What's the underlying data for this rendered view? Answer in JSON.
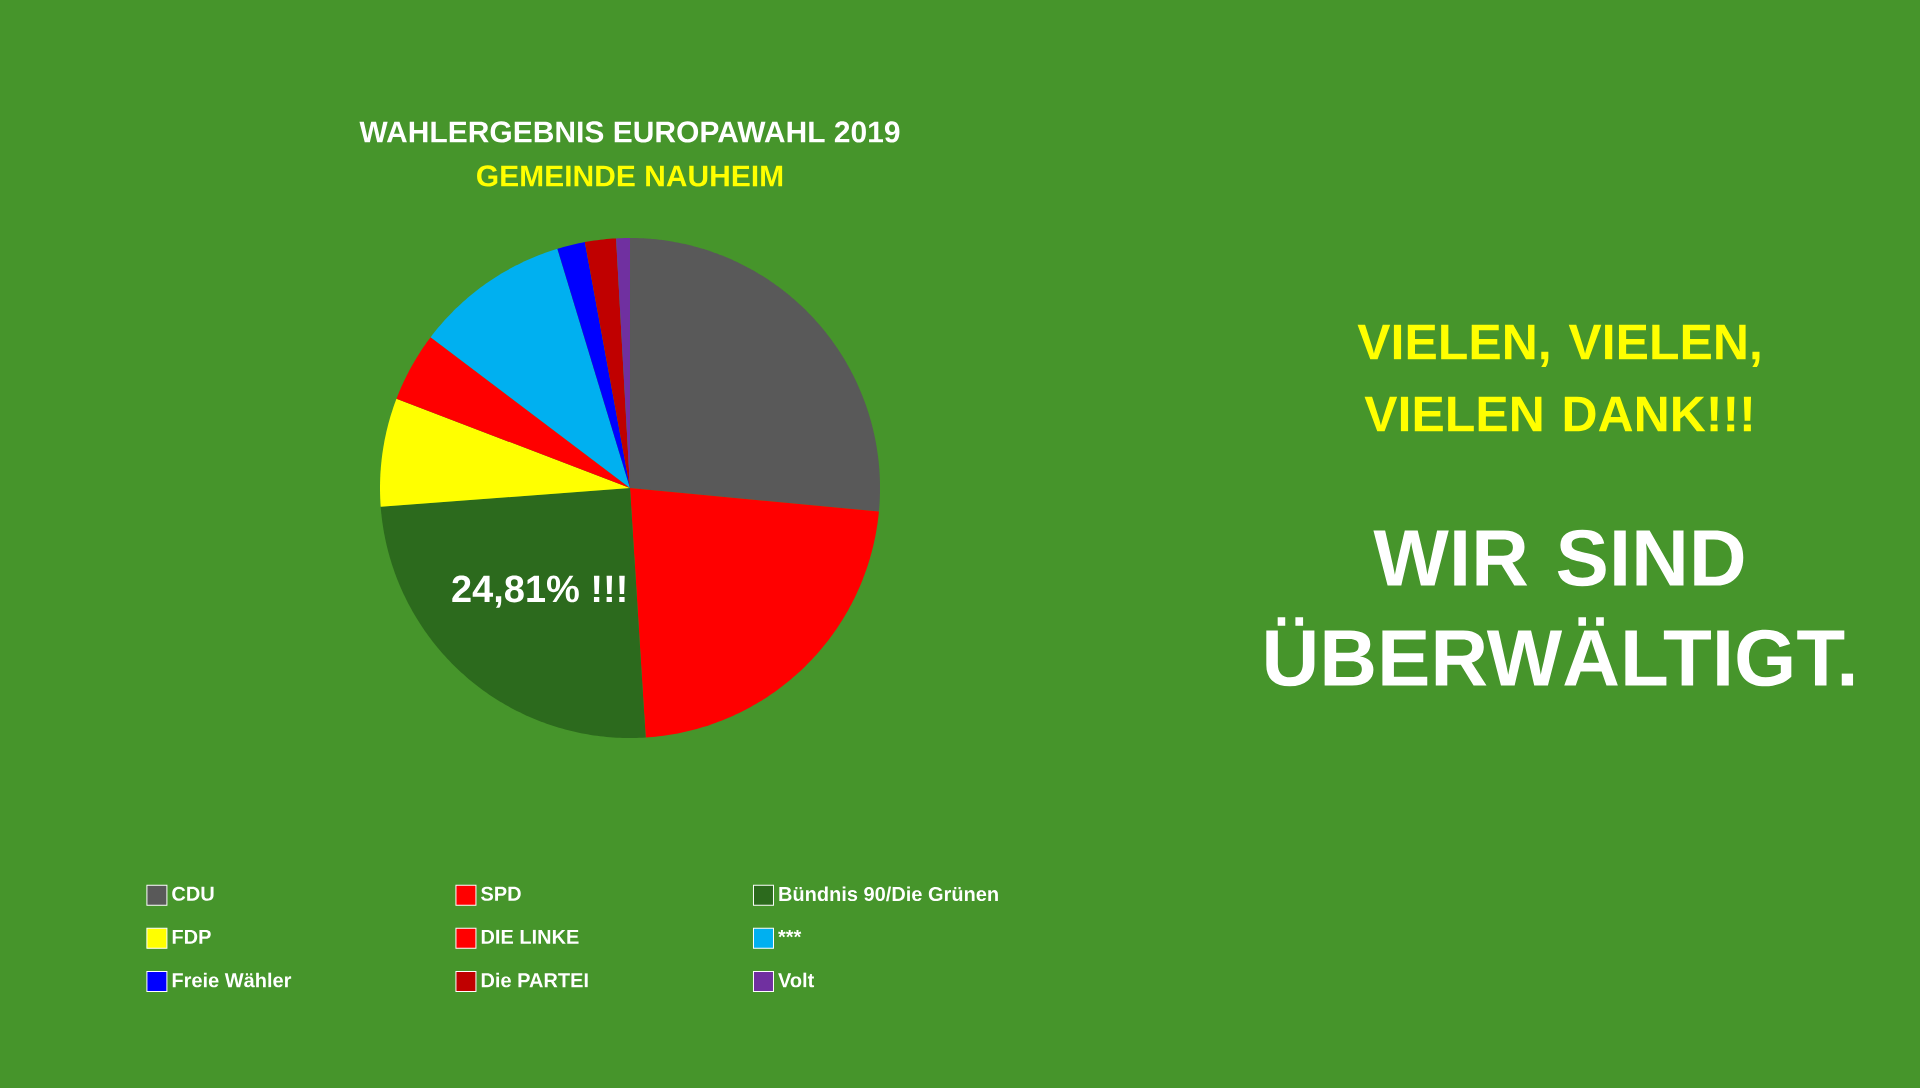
{
  "chart_data": {
    "type": "pie",
    "title": "WAHLERGEBNIS EUROPAWAHL 2019",
    "subtitle": "GEMEINDE NAUHEIM",
    "categories": [
      "CDU",
      "SPD",
      "Bündnis 90/Die Grünen",
      "FDP",
      "DIE LINKE",
      "***",
      "Freie Wähler",
      "Die PARTEI",
      "Volt"
    ],
    "values": [
      26.5,
      22.5,
      24.81,
      7,
      4.5,
      10,
      1.8,
      2,
      0.89
    ],
    "colors": [
      "#595959",
      "#ff0000",
      "#2c6a1d",
      "#ffff00",
      "#ff0000",
      "#00b0f0",
      "#0000ff",
      "#c00000",
      "#7030a0"
    ],
    "value_labels": [
      null,
      null,
      "24,81% !!!",
      null,
      null,
      null,
      null,
      null,
      null
    ],
    "legend": "bottom",
    "annotations": [
      "VIELEN, VIELEN, VIELEN DANK!!!",
      "WIR SIND ÜBERWÄLTIGT."
    ]
  }
}
